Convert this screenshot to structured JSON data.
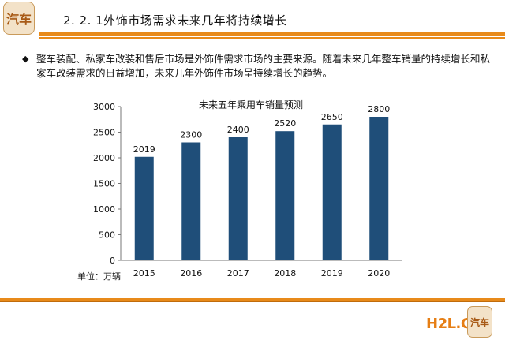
{
  "header": {
    "logo_text": "汽车",
    "title": "2. 2. 1外饰市场需求未来几年将持续增长"
  },
  "bullet": {
    "text": "整车装配、私家车改装和售后市场是外饰件需求市场的主要来源。随着未来几年整车销量的持续增长和私家车改装需求的日益增加，未来几年外饰件市场呈持续增长的趋势。"
  },
  "chart_data": {
    "type": "bar",
    "title": "未来五年乘用车销量预测",
    "categories": [
      "2015",
      "2016",
      "2017",
      "2018",
      "2019",
      "2020"
    ],
    "values": [
      2019,
      2300,
      2400,
      2520,
      2650,
      2800
    ],
    "data_labels": [
      "2019",
      "2300",
      "2400",
      "2520",
      "2650",
      "2800"
    ],
    "ylim": [
      0,
      3000
    ],
    "yticks": [
      0,
      500,
      1000,
      1500,
      2000,
      2500,
      3000
    ],
    "unit_label": "单位：万辆",
    "bar_color": "#1f4e79",
    "grid": false,
    "legend": "none"
  },
  "footer": {
    "watermark_text": "H2L.CN",
    "badge_text": "汽车"
  },
  "colors": {
    "accent": "#e88a1a",
    "bar": "#1f4e79"
  }
}
